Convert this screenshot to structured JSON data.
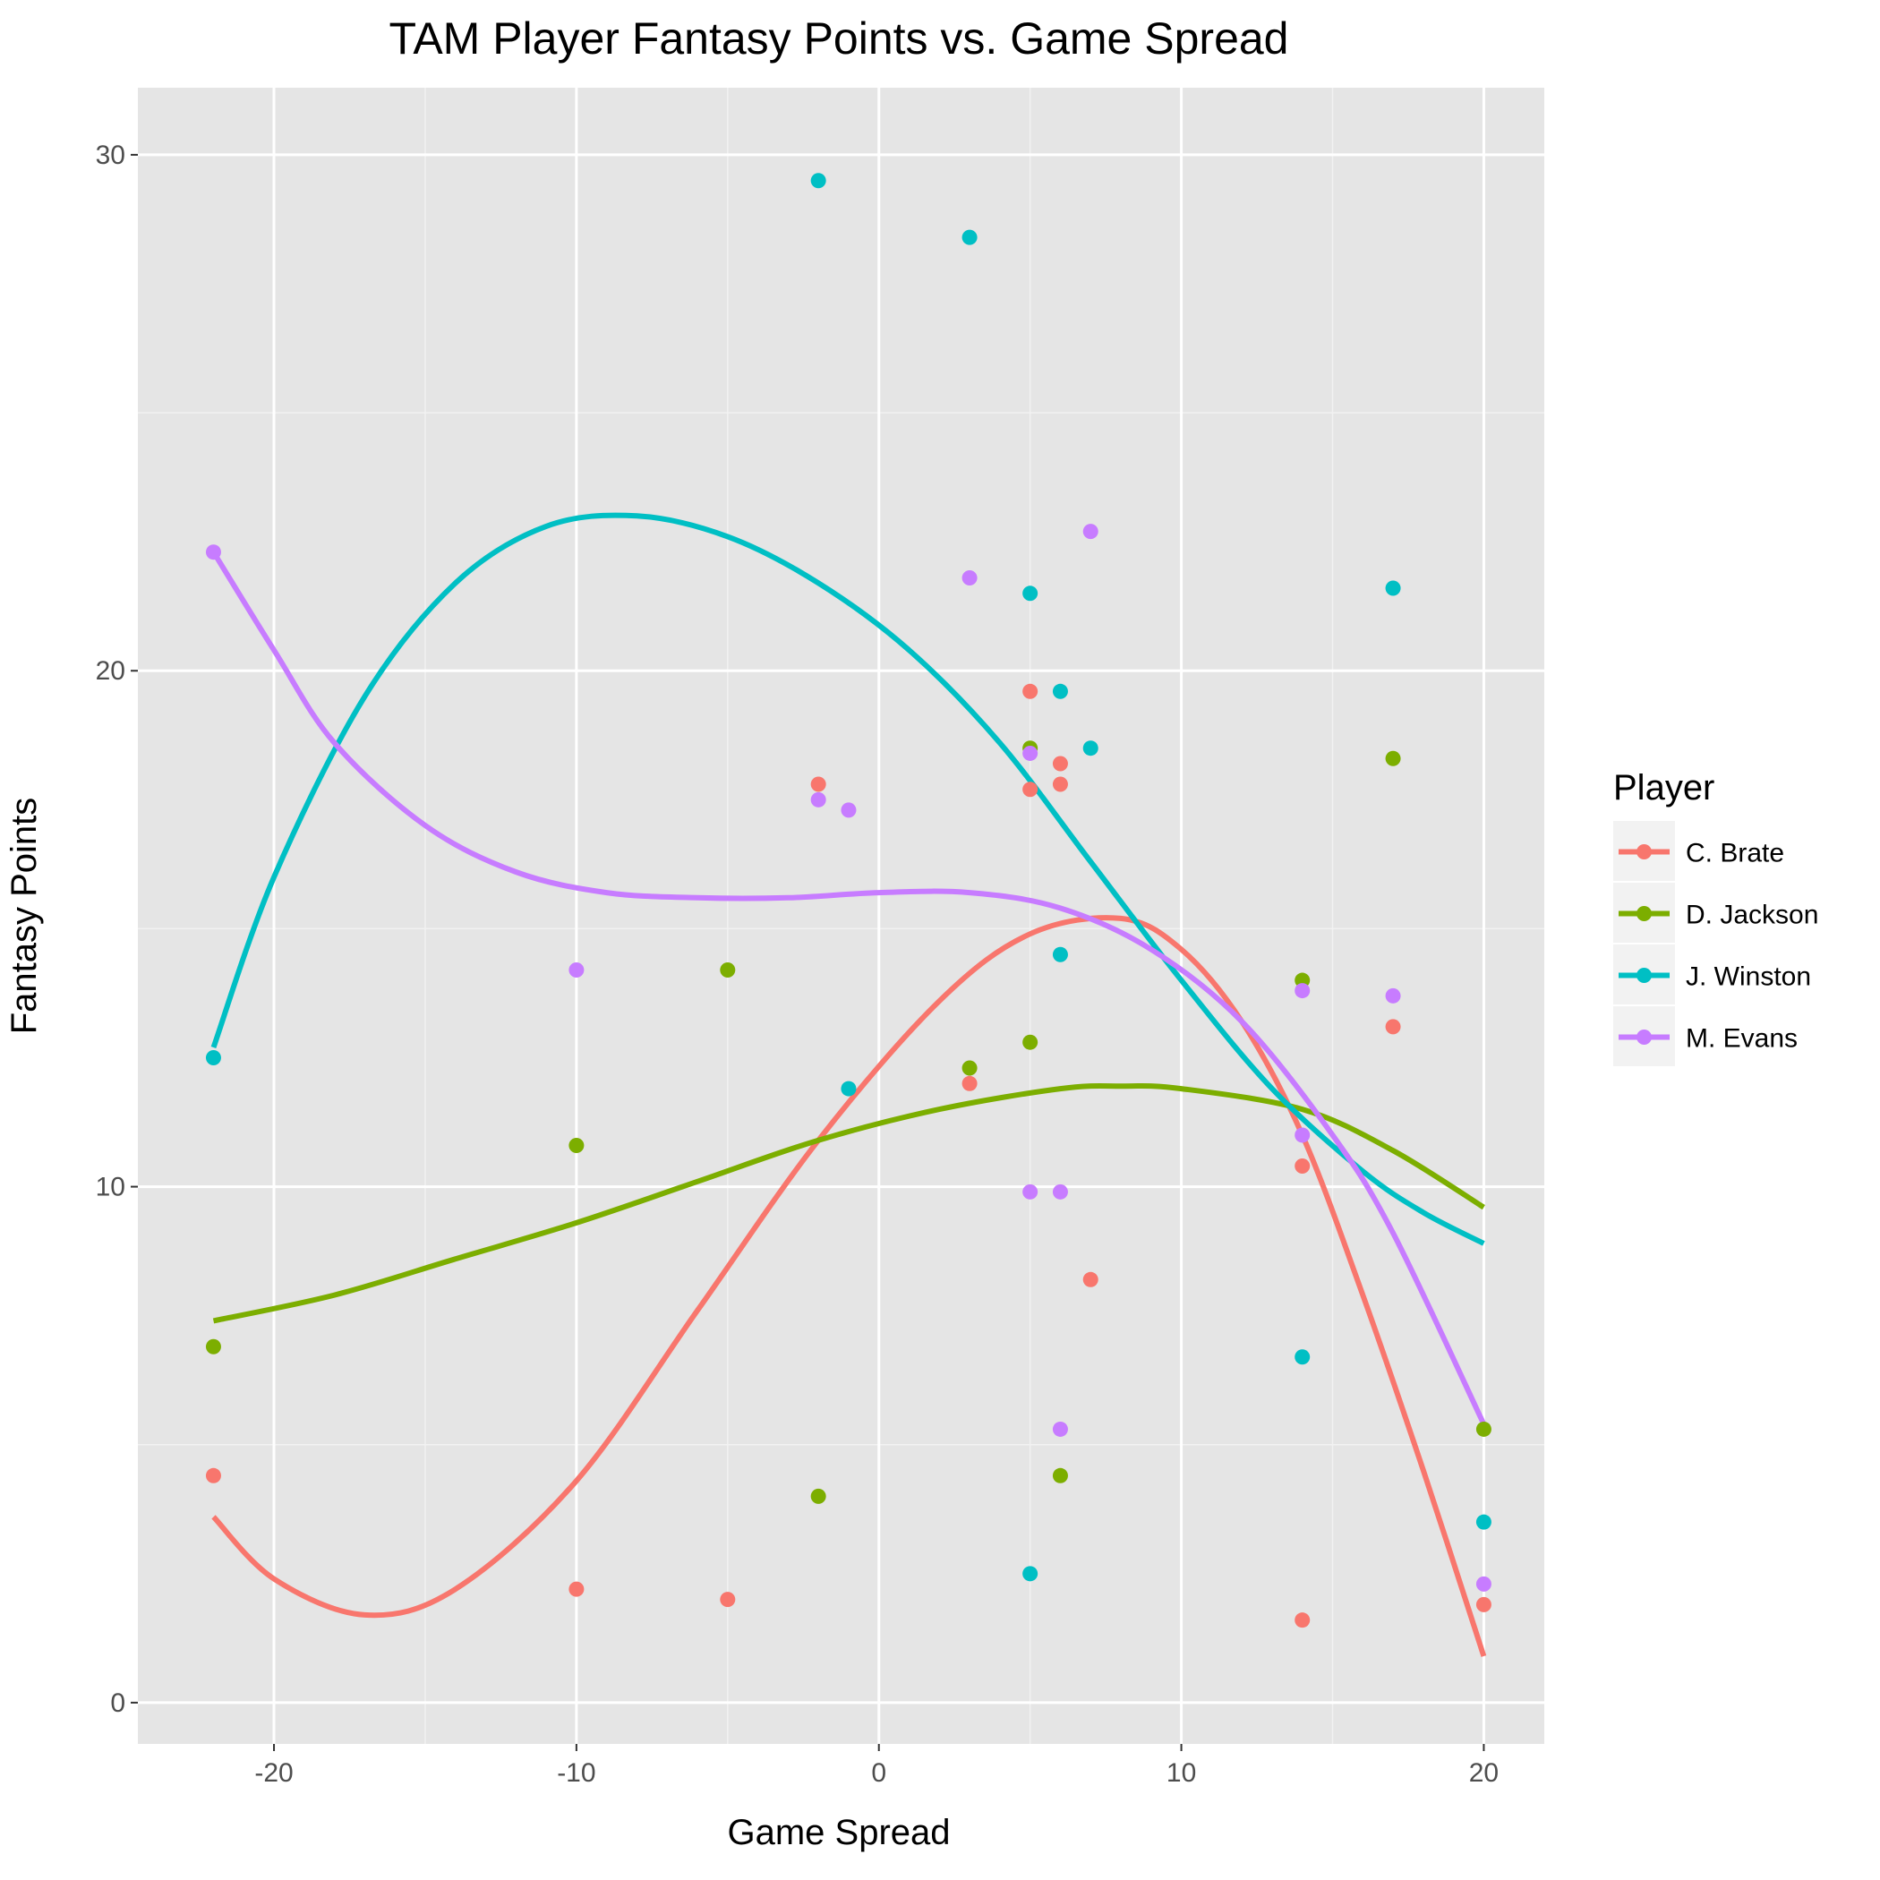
{
  "chart_data": {
    "type": "scatter",
    "title": "TAM Player Fantasy Points vs. Game Spread",
    "xlabel": "Game Spread",
    "ylabel": "Fantasy Points",
    "xlim": [
      -24.5,
      22
    ],
    "ylim": [
      -0.8,
      31.3
    ],
    "x_ticks": [
      -20,
      -10,
      0,
      10,
      20
    ],
    "x_tick_labels": [
      "-20",
      "-10",
      "0",
      "10",
      "20"
    ],
    "y_ticks": [
      0,
      10,
      20,
      30
    ],
    "y_tick_labels": [
      "0",
      "10",
      "20",
      "30"
    ],
    "grid": true,
    "legend_title": "Player",
    "legend_position": "right",
    "panel_color": "#E5E5E5",
    "series": [
      {
        "name": "C. Brate",
        "color": "#F8766D",
        "points": [
          {
            "x": -22,
            "y": 4.4
          },
          {
            "x": -10,
            "y": 2.2
          },
          {
            "x": -5,
            "y": 2.0
          },
          {
            "x": -2,
            "y": 17.8
          },
          {
            "x": 3,
            "y": 12.0
          },
          {
            "x": 5,
            "y": 19.6
          },
          {
            "x": 5,
            "y": 17.7
          },
          {
            "x": 6,
            "y": 18.2
          },
          {
            "x": 6,
            "y": 17.8
          },
          {
            "x": 7,
            "y": 8.2
          },
          {
            "x": 14,
            "y": 10.4
          },
          {
            "x": 14,
            "y": 1.6
          },
          {
            "x": 17,
            "y": 13.1
          },
          {
            "x": 20,
            "y": 1.9
          }
        ],
        "trend": [
          {
            "x": -22,
            "y": 3.6
          },
          {
            "x": -20,
            "y": 2.4
          },
          {
            "x": -17,
            "y": 1.7
          },
          {
            "x": -14,
            "y": 2.2
          },
          {
            "x": -10,
            "y": 4.3
          },
          {
            "x": -6,
            "y": 7.6
          },
          {
            "x": -2,
            "y": 10.9
          },
          {
            "x": 2,
            "y": 13.6
          },
          {
            "x": 5,
            "y": 14.9
          },
          {
            "x": 8,
            "y": 15.2
          },
          {
            "x": 10,
            "y": 14.6
          },
          {
            "x": 12,
            "y": 13.2
          },
          {
            "x": 14,
            "y": 11.0
          },
          {
            "x": 16,
            "y": 7.9
          },
          {
            "x": 18,
            "y": 4.5
          },
          {
            "x": 20,
            "y": 0.9
          }
        ]
      },
      {
        "name": "D. Jackson",
        "color": "#7CAE00",
        "points": [
          {
            "x": -22,
            "y": 6.9
          },
          {
            "x": -10,
            "y": 10.8
          },
          {
            "x": -5,
            "y": 14.2
          },
          {
            "x": -2,
            "y": 4.0
          },
          {
            "x": 3,
            "y": 12.3
          },
          {
            "x": 5,
            "y": 18.5
          },
          {
            "x": 5,
            "y": 12.8
          },
          {
            "x": 6,
            "y": 4.4
          },
          {
            "x": 14,
            "y": 14.0
          },
          {
            "x": 17,
            "y": 18.3
          },
          {
            "x": 20,
            "y": 5.3
          }
        ],
        "trend": [
          {
            "x": -22,
            "y": 7.4
          },
          {
            "x": -18,
            "y": 7.9
          },
          {
            "x": -14,
            "y": 8.6
          },
          {
            "x": -10,
            "y": 9.3
          },
          {
            "x": -6,
            "y": 10.1
          },
          {
            "x": -2,
            "y": 10.9
          },
          {
            "x": 2,
            "y": 11.5
          },
          {
            "x": 6,
            "y": 11.9
          },
          {
            "x": 8,
            "y": 11.95
          },
          {
            "x": 10,
            "y": 11.9
          },
          {
            "x": 14,
            "y": 11.5
          },
          {
            "x": 17,
            "y": 10.7
          },
          {
            "x": 20,
            "y": 9.6
          }
        ]
      },
      {
        "name": "J. Winston",
        "color": "#00BFC4",
        "points": [
          {
            "x": -22,
            "y": 12.5
          },
          {
            "x": -2,
            "y": 29.5
          },
          {
            "x": -1,
            "y": 11.9
          },
          {
            "x": 3,
            "y": 28.4
          },
          {
            "x": 5,
            "y": 21.5
          },
          {
            "x": 5,
            "y": 2.5
          },
          {
            "x": 6,
            "y": 19.6
          },
          {
            "x": 6,
            "y": 14.5
          },
          {
            "x": 7,
            "y": 18.5
          },
          {
            "x": 14,
            "y": 6.7
          },
          {
            "x": 17,
            "y": 21.6
          },
          {
            "x": 20,
            "y": 3.5
          }
        ],
        "trend": [
          {
            "x": -22,
            "y": 12.7
          },
          {
            "x": -20,
            "y": 16.0
          },
          {
            "x": -17,
            "y": 19.5
          },
          {
            "x": -14,
            "y": 21.7
          },
          {
            "x": -11,
            "y": 22.8
          },
          {
            "x": -8,
            "y": 23.0
          },
          {
            "x": -5,
            "y": 22.6
          },
          {
            "x": -2,
            "y": 21.7
          },
          {
            "x": 1,
            "y": 20.4
          },
          {
            "x": 4,
            "y": 18.6
          },
          {
            "x": 7,
            "y": 16.3
          },
          {
            "x": 10,
            "y": 14.0
          },
          {
            "x": 13,
            "y": 11.9
          },
          {
            "x": 16,
            "y": 10.3
          },
          {
            "x": 18,
            "y": 9.5
          },
          {
            "x": 20,
            "y": 8.9
          }
        ]
      },
      {
        "name": "M. Evans",
        "color": "#C77CFF",
        "points": [
          {
            "x": -22,
            "y": 22.3
          },
          {
            "x": -10,
            "y": 14.2
          },
          {
            "x": -2,
            "y": 17.5
          },
          {
            "x": -1,
            "y": 17.3
          },
          {
            "x": 3,
            "y": 21.8
          },
          {
            "x": 5,
            "y": 18.4
          },
          {
            "x": 5,
            "y": 9.9
          },
          {
            "x": 6,
            "y": 9.9
          },
          {
            "x": 6,
            "y": 5.3
          },
          {
            "x": 7,
            "y": 22.7
          },
          {
            "x": 14,
            "y": 13.8
          },
          {
            "x": 14,
            "y": 11.0
          },
          {
            "x": 17,
            "y": 13.7
          },
          {
            "x": 20,
            "y": 2.3
          }
        ],
        "trend": [
          {
            "x": -22,
            "y": 22.3
          },
          {
            "x": -20,
            "y": 20.4
          },
          {
            "x": -18,
            "y": 18.6
          },
          {
            "x": -15,
            "y": 17.0
          },
          {
            "x": -12,
            "y": 16.1
          },
          {
            "x": -9,
            "y": 15.7
          },
          {
            "x": -6,
            "y": 15.6
          },
          {
            "x": -3,
            "y": 15.6
          },
          {
            "x": 0,
            "y": 15.7
          },
          {
            "x": 3,
            "y": 15.7
          },
          {
            "x": 6,
            "y": 15.4
          },
          {
            "x": 9,
            "y": 14.6
          },
          {
            "x": 12,
            "y": 13.2
          },
          {
            "x": 15,
            "y": 11.0
          },
          {
            "x": 17,
            "y": 9.1
          },
          {
            "x": 20,
            "y": 5.4
          }
        ]
      }
    ]
  }
}
